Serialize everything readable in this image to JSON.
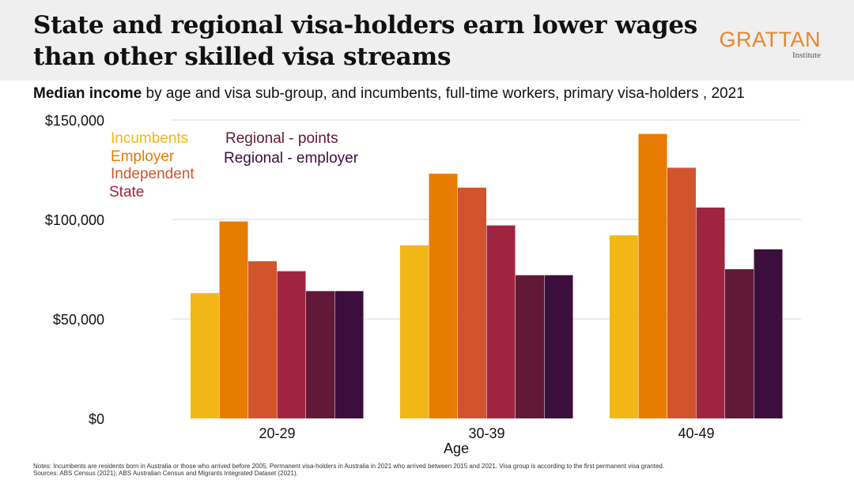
{
  "header": {
    "title": "State and regional visa-holders earn lower wages than other skilled visa streams",
    "logo_main": "GRATTAN",
    "logo_sub": "Institute"
  },
  "subtitle": {
    "bold": "Median income",
    "rest": " by age and visa sub-group, and incumbents, full-time workers, primary visa-holders , 2021"
  },
  "notes": {
    "line1": "Notes: Incumbents are residents born in Australia or those who arrived before 2005. Permanent visa-holders in Australia in 2021 who arrived between 2015 and 2021. Visa group is according to the first permanent visa granted.",
    "line2": "Sources: ABS Census (2021); ABS Australian Census and Migrants Integrated Dataset (2021)."
  },
  "colors": {
    "header_bg": "#efefef",
    "logo": "#e8862a"
  },
  "chart_data": {
    "type": "bar",
    "xlabel": "Age",
    "ylabel": "",
    "ylim": [
      0,
      150000
    ],
    "yticks": [
      "$0",
      "$50,000",
      "$100,000",
      "$150,000"
    ],
    "ytick_values": [
      0,
      50000,
      100000,
      150000
    ],
    "grid": true,
    "legend_position": "top-left",
    "categories": [
      "20-29",
      "30-39",
      "40-49"
    ],
    "series": [
      {
        "name": "Incumbents",
        "color": "#f3b617",
        "values": [
          63000,
          87000,
          92000
        ]
      },
      {
        "name": "Employer",
        "color": "#e87b02",
        "values": [
          99000,
          123000,
          143000
        ]
      },
      {
        "name": "Independent",
        "color": "#d2542d",
        "values": [
          79000,
          116000,
          126000
        ]
      },
      {
        "name": "State",
        "color": "#a0233f",
        "values": [
          74000,
          97000,
          106000
        ]
      },
      {
        "name": "Regional - points",
        "color": "#621937",
        "values": [
          64000,
          72000,
          75000
        ]
      },
      {
        "name": "Regional - employer",
        "color": "#3c0e3d",
        "values": [
          64000,
          72000,
          85000
        ]
      }
    ]
  }
}
